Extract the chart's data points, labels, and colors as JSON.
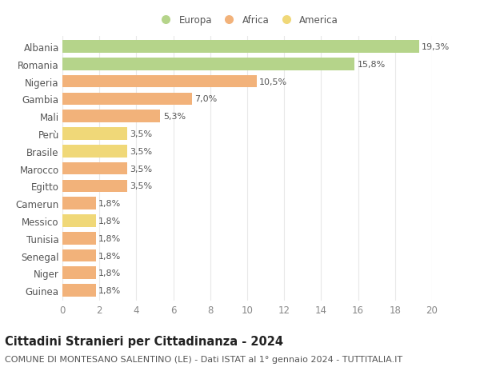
{
  "categories": [
    "Guinea",
    "Niger",
    "Senegal",
    "Tunisia",
    "Messico",
    "Camerun",
    "Egitto",
    "Marocco",
    "Brasile",
    "Perù",
    "Mali",
    "Gambia",
    "Nigeria",
    "Romania",
    "Albania"
  ],
  "values": [
    1.8,
    1.8,
    1.8,
    1.8,
    1.8,
    1.8,
    3.5,
    3.5,
    3.5,
    3.5,
    5.3,
    7.0,
    10.5,
    15.8,
    19.3
  ],
  "labels": [
    "1,8%",
    "1,8%",
    "1,8%",
    "1,8%",
    "1,8%",
    "1,8%",
    "3,5%",
    "3,5%",
    "3,5%",
    "3,5%",
    "5,3%",
    "7,0%",
    "10,5%",
    "15,8%",
    "19,3%"
  ],
  "colors": [
    "#f2b27a",
    "#f2b27a",
    "#f2b27a",
    "#f2b27a",
    "#f0d878",
    "#f2b27a",
    "#f2b27a",
    "#f2b27a",
    "#f0d878",
    "#f0d878",
    "#f2b27a",
    "#f2b27a",
    "#f2b27a",
    "#b5d48a",
    "#b5d48a"
  ],
  "legend_labels": [
    "Europa",
    "Africa",
    "America"
  ],
  "legend_colors": [
    "#b5d48a",
    "#f2b27a",
    "#f0d878"
  ],
  "title": "Cittadini Stranieri per Cittadinanza - 2024",
  "subtitle": "COMUNE DI MONTESANO SALENTINO (LE) - Dati ISTAT al 1° gennaio 2024 - TUTTITALIA.IT",
  "xlim": [
    0,
    20
  ],
  "xticks": [
    0,
    2,
    4,
    6,
    8,
    10,
    12,
    14,
    16,
    18,
    20
  ],
  "background_color": "#ffffff",
  "grid_color": "#e8e8e8",
  "bar_height": 0.72,
  "title_fontsize": 10.5,
  "subtitle_fontsize": 8,
  "label_fontsize": 8,
  "tick_fontsize": 8.5,
  "legend_fontsize": 8.5
}
